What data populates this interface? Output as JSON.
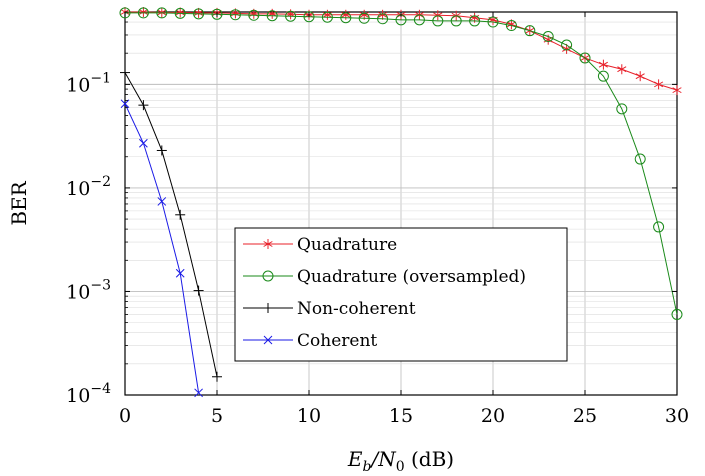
{
  "chart_data": {
    "type": "line",
    "xlabel_main": "E",
    "xlabel_sub1": "b",
    "xlabel_mid": "/N",
    "xlabel_sub2": "0",
    "xlabel_unit": " (dB)",
    "ylabel": "BER",
    "x_scale": "linear",
    "y_scale": "log",
    "xlim": [
      0,
      30
    ],
    "ylim": [
      0.0001,
      0.5
    ],
    "grid": true,
    "legend_position": "lower-center",
    "x_ticks": [
      {
        "value": 0,
        "label": "0"
      },
      {
        "value": 5,
        "label": "5"
      },
      {
        "value": 10,
        "label": "10"
      },
      {
        "value": 15,
        "label": "15"
      },
      {
        "value": 20,
        "label": "20"
      },
      {
        "value": 25,
        "label": "25"
      },
      {
        "value": 30,
        "label": "30"
      }
    ],
    "y_ticks": [
      {
        "value": 0.1,
        "base": "10",
        "exp": "−1"
      },
      {
        "value": 0.01,
        "base": "10",
        "exp": "−2"
      },
      {
        "value": 0.001,
        "base": "10",
        "exp": "−3"
      },
      {
        "value": 0.0001,
        "base": "10",
        "exp": "−4"
      }
    ],
    "series": [
      {
        "name": "Quadrature",
        "color": "#e8202a",
        "marker": "asterisk",
        "x": [
          0,
          1,
          2,
          3,
          4,
          5,
          6,
          7,
          8,
          9,
          10,
          11,
          12,
          13,
          14,
          15,
          16,
          17,
          18,
          19,
          20,
          21,
          22,
          23,
          24,
          25,
          26,
          27,
          28,
          29,
          30
        ],
        "y": [
          0.5,
          0.5,
          0.495,
          0.495,
          0.49,
          0.49,
          0.485,
          0.48,
          0.48,
          0.475,
          0.47,
          0.47,
          0.47,
          0.47,
          0.47,
          0.47,
          0.47,
          0.465,
          0.46,
          0.44,
          0.42,
          0.38,
          0.33,
          0.27,
          0.22,
          0.18,
          0.155,
          0.14,
          0.12,
          0.1,
          0.088
        ]
      },
      {
        "name": "Quadrature (oversampled)",
        "color": "#1a8a1a",
        "marker": "circle",
        "x": [
          0,
          1,
          2,
          3,
          4,
          5,
          6,
          7,
          8,
          9,
          10,
          11,
          12,
          13,
          14,
          15,
          16,
          17,
          18,
          19,
          20,
          21,
          22,
          23,
          24,
          25,
          26,
          27,
          28,
          29,
          30
        ],
        "y": [
          0.49,
          0.49,
          0.49,
          0.485,
          0.48,
          0.475,
          0.47,
          0.465,
          0.46,
          0.455,
          0.45,
          0.445,
          0.44,
          0.435,
          0.43,
          0.42,
          0.42,
          0.41,
          0.41,
          0.41,
          0.4,
          0.37,
          0.33,
          0.29,
          0.24,
          0.18,
          0.12,
          0.058,
          0.019,
          0.0042,
          0.0006
        ]
      },
      {
        "name": "Non-coherent",
        "color": "#000000",
        "marker": "plus",
        "x": [
          0,
          1,
          2,
          3,
          4,
          5
        ],
        "y": [
          0.13,
          0.063,
          0.023,
          0.0055,
          0.00102,
          0.00015
        ]
      },
      {
        "name": "Coherent",
        "color": "#1a1ae6",
        "marker": "x",
        "x": [
          0,
          1,
          2,
          3,
          4
        ],
        "y": [
          0.065,
          0.027,
          0.0074,
          0.0015,
          0.000105
        ]
      }
    ]
  }
}
